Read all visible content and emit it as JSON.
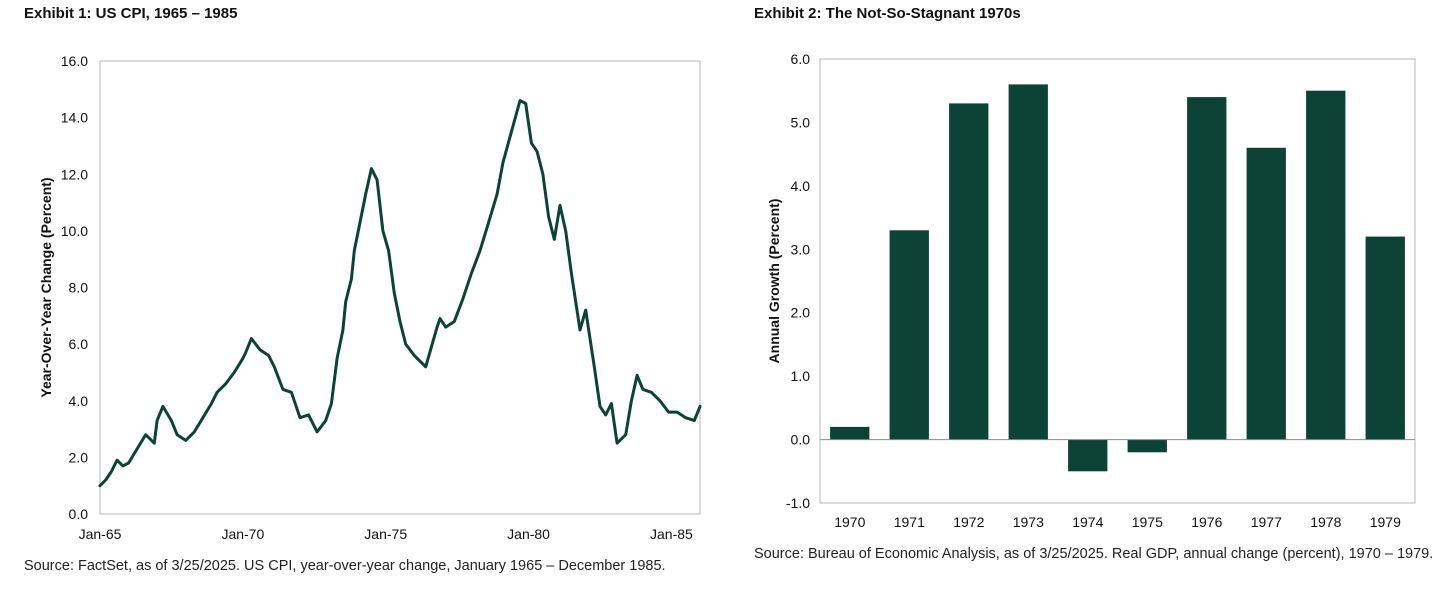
{
  "exhibit1": {
    "title": "Exhibit 1: US CPI, 1965 – 1985",
    "source": "Source: FactSet, as of 3/25/2025. US CPI, year-over-year change, January 1965 – December 1985."
  },
  "exhibit2": {
    "title": "Exhibit 2: The Not-So-Stagnant 1970s",
    "source": "Source: Bureau of Economic Analysis, as of 3/25/2025. Real GDP, annual change (percent), 1970 – 1979."
  },
  "chart_data": [
    {
      "type": "line",
      "ylabel": "Year-Over-Year Change (Percent)",
      "xlabel": "",
      "ylim": [
        0,
        16
      ],
      "yticks": [
        "0.0",
        "2.0",
        "4.0",
        "6.0",
        "8.0",
        "10.0",
        "12.0",
        "14.0",
        "16.0"
      ],
      "xlim": [
        1965.0,
        1986.0
      ],
      "xticks": [
        {
          "label": "Jan-65",
          "x": 1965.0
        },
        {
          "label": "Jan-70",
          "x": 1970.0
        },
        {
          "label": "Jan-75",
          "x": 1975.0
        },
        {
          "label": "Jan-80",
          "x": 1980.0
        },
        {
          "label": "Jan-85",
          "x": 1985.0
        }
      ],
      "grid": false,
      "series": [
        {
          "color": "#0d4236",
          "x": [
            1965.0,
            1965.2,
            1965.4,
            1965.6,
            1965.8,
            1966.0,
            1966.3,
            1966.6,
            1966.9,
            1967.0,
            1967.2,
            1967.5,
            1967.7,
            1968.0,
            1968.3,
            1968.6,
            1968.9,
            1969.1,
            1969.4,
            1969.7,
            1970.0,
            1970.1,
            1970.3,
            1970.6,
            1970.9,
            1971.1,
            1971.4,
            1971.7,
            1972.0,
            1972.3,
            1972.6,
            1972.9,
            1973.1,
            1973.3,
            1973.5,
            1973.6,
            1973.8,
            1973.9,
            1974.1,
            1974.3,
            1974.5,
            1974.7,
            1974.9,
            1975.1,
            1975.3,
            1975.5,
            1975.7,
            1976.0,
            1976.4,
            1976.8,
            1976.9,
            1977.1,
            1977.4,
            1977.7,
            1978.0,
            1978.3,
            1978.6,
            1978.9,
            1979.1,
            1979.4,
            1979.7,
            1979.9,
            1980.1,
            1980.3,
            1980.5,
            1980.7,
            1980.9,
            1981.1,
            1981.3,
            1981.5,
            1981.8,
            1982.0,
            1982.3,
            1982.5,
            1982.7,
            1982.9,
            1983.1,
            1983.4,
            1983.6,
            1983.8,
            1984.0,
            1984.3,
            1984.6,
            1984.9,
            1985.2,
            1985.5,
            1985.8,
            1986.0
          ],
          "y": [
            1.0,
            1.2,
            1.5,
            1.9,
            1.7,
            1.8,
            2.3,
            2.8,
            2.5,
            3.3,
            3.8,
            3.3,
            2.8,
            2.6,
            2.9,
            3.4,
            3.9,
            4.3,
            4.6,
            5.0,
            5.5,
            5.7,
            6.2,
            5.8,
            5.6,
            5.2,
            4.4,
            4.3,
            3.4,
            3.5,
            2.9,
            3.3,
            3.9,
            5.5,
            6.5,
            7.5,
            8.3,
            9.3,
            10.3,
            11.3,
            12.2,
            11.8,
            10.0,
            9.3,
            7.8,
            6.8,
            6.0,
            5.6,
            5.2,
            6.6,
            6.9,
            6.6,
            6.8,
            7.6,
            8.5,
            9.3,
            10.3,
            11.3,
            12.4,
            13.5,
            14.6,
            14.5,
            13.1,
            12.8,
            12.0,
            10.5,
            9.7,
            10.9,
            10.0,
            8.5,
            6.5,
            7.2,
            5.2,
            3.8,
            3.5,
            3.9,
            2.5,
            2.8,
            4.0,
            4.9,
            4.4,
            4.3,
            4.0,
            3.6,
            3.6,
            3.4,
            3.3,
            3.8
          ]
        }
      ]
    },
    {
      "type": "bar",
      "ylabel": "Annual Growth (Percent)",
      "xlabel": "",
      "ylim": [
        -1,
        6
      ],
      "yticks": [
        "-1.0",
        "0.0",
        "1.0",
        "2.0",
        "3.0",
        "4.0",
        "5.0",
        "6.0"
      ],
      "categories": [
        "1970",
        "1971",
        "1972",
        "1973",
        "1974",
        "1975",
        "1976",
        "1977",
        "1978",
        "1979"
      ],
      "values": [
        0.2,
        3.3,
        5.3,
        5.6,
        -0.5,
        -0.2,
        5.4,
        4.6,
        5.5,
        3.2
      ],
      "color": "#0d4236",
      "grid": false
    }
  ]
}
